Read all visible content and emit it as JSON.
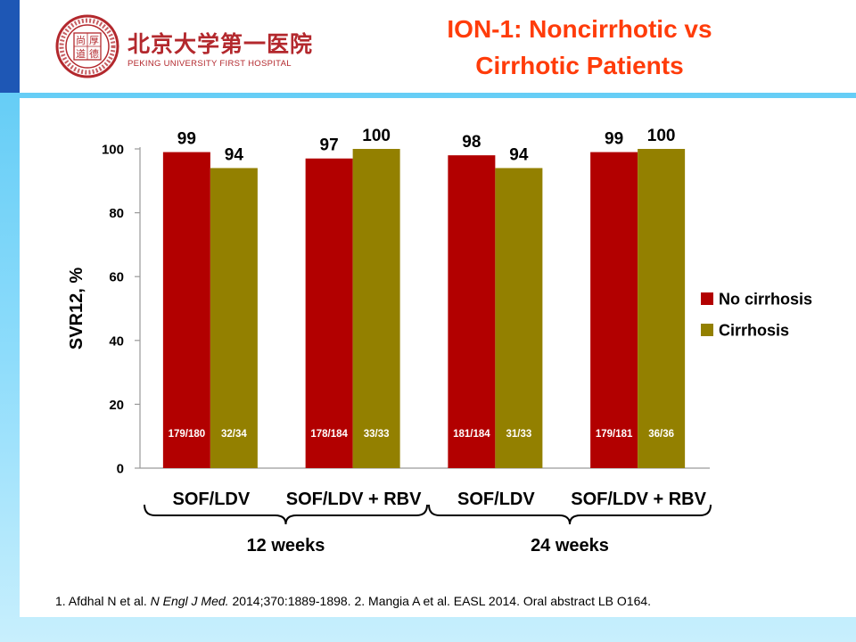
{
  "header": {
    "title_line1": "ION-1: Noncirrhotic vs",
    "title_line2": "Cirrhotic Patients",
    "logo_cn": "北京大学第一医院",
    "logo_en": "PEKING UNIVERSITY FIRST HOSPITAL",
    "seal_inner": [
      "尚",
      "厚",
      "道",
      "德"
    ],
    "seal_ring": "PEKING UNIVERSITY · 1915 · FIRST HOSPITAL"
  },
  "chart_data": {
    "type": "bar",
    "ylabel": "SVR12, %",
    "ylim": [
      0,
      100
    ],
    "yticks": [
      0,
      20,
      40,
      60,
      80,
      100
    ],
    "categories": [
      "SOF/LDV",
      "SOF/LDV + RBV",
      "SOF/LDV",
      "SOF/LDV + RBV"
    ],
    "groups": [
      "12 weeks",
      "24 weeks"
    ],
    "series": [
      {
        "name": "No cirrhosis",
        "color": "#b20000",
        "values": [
          99,
          97,
          98,
          99
        ],
        "ratios": [
          "179/180",
          "178/184",
          "181/184",
          "179/181"
        ]
      },
      {
        "name": "Cirrhosis",
        "color": "#938000",
        "values": [
          94,
          100,
          94,
          100
        ],
        "ratios": [
          "32/34",
          "33/33",
          "31/33",
          "36/36"
        ]
      }
    ],
    "legend_position": "right",
    "grid": false
  },
  "footnote": {
    "p1": "1. Afdhal N et al. ",
    "journal": "N Engl J Med.",
    "p2": " 2014;370:1889-1898. 2. Mangia A et al. EASL 2014. Oral abstract LB O164."
  },
  "colors": {
    "title": "#ff3c0a",
    "accent_bar": "#1e57b5",
    "brand": "#b3282d"
  }
}
